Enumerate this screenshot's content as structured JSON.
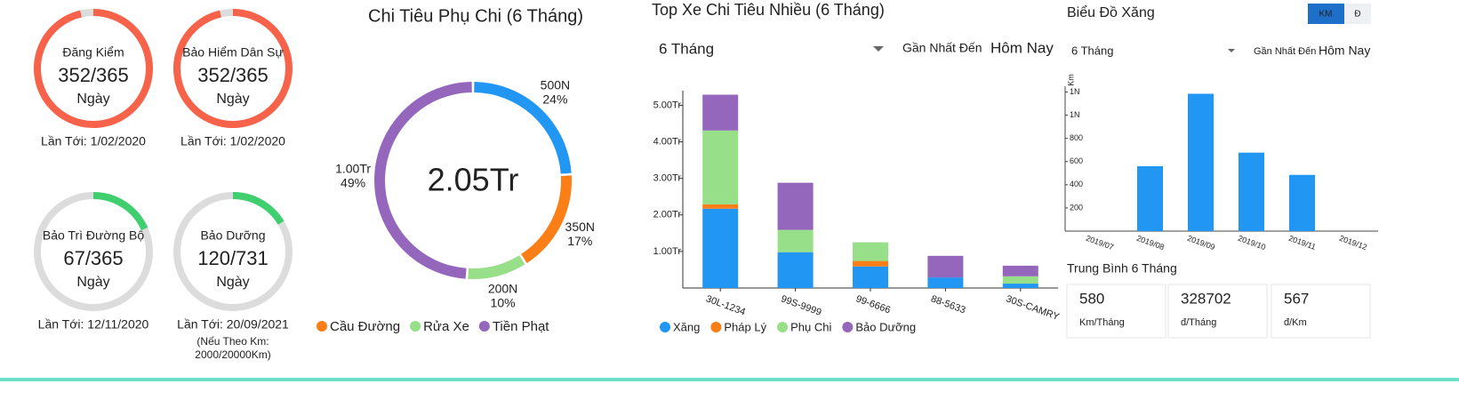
{
  "gauges": [
    {
      "title": "Đăng Kiểm",
      "value_label": "352/365",
      "value": 352,
      "max": 365,
      "unit": "Ngày",
      "next": "Lần Tới: 1/02/2020",
      "color": "#f7634a"
    },
    {
      "title": "Bảo Hiểm Dân Sự",
      "value_label": "352/365",
      "value": 352,
      "max": 365,
      "unit": "Ngày",
      "next": "Lần Tới: 1/02/2020",
      "color": "#f7634a"
    },
    {
      "title": "Bảo Trì Đường Bộ",
      "value_label": "67/365",
      "value": 67,
      "max": 365,
      "unit": "Ngày",
      "next": "Lần Tới: 12/11/2020",
      "color": "#3fcf6f"
    },
    {
      "title": "Bảo Dưỡng",
      "value_label": "120/731",
      "value": 120,
      "max": 731,
      "unit": "Ngày",
      "next": "Lần Tới: 20/09/2021",
      "color": "#3fcf6f",
      "note": [
        "(Nếu Theo Km:",
        "2000/20000Km)"
      ]
    }
  ],
  "chart_data": [
    {
      "type": "donut",
      "title": "Chi Tiêu Phụ Chi (6 Tháng)",
      "center_label": "2.05Tr",
      "categories": [
        null,
        "Cầu Đường",
        "Rửa Xe",
        "Tiền Phạt"
      ],
      "values": [
        24,
        17,
        10,
        49
      ],
      "value_labels": [
        "24%",
        "17%",
        "10%",
        "49%"
      ],
      "amount_labels": [
        "500N",
        "350N",
        "200N",
        "1.00Tr"
      ],
      "colors": [
        "#2196f3",
        "#fb7f16",
        "#98df8a",
        "#9467bd"
      ]
    },
    {
      "type": "stacked-bar",
      "title": "Top Xe Chi Tiêu Nhiều (6 Tháng)",
      "controls": {
        "period": "6 Tháng",
        "until": "Gần Nhất Đến",
        "today": "Hôm Nay"
      },
      "categories": [
        "30L-1234",
        "99S-9999",
        "99-6666",
        "88-5633",
        "30S-CAMRY"
      ],
      "series": [
        {
          "name": "Xăng",
          "color": "#2196f3",
          "values": [
            2.17,
            0.98,
            0.59,
            0.29,
            0.12
          ]
        },
        {
          "name": "Pháp Lý",
          "color": "#fb7f16",
          "values": [
            0.12,
            0,
            0.15,
            0,
            0
          ]
        },
        {
          "name": "Phụ Chi",
          "color": "#98df8a",
          "values": [
            2.02,
            0.61,
            0.51,
            0,
            0.2
          ]
        },
        {
          "name": "Bảo Dưỡng",
          "color": "#9467bd",
          "values": [
            0.98,
            1.29,
            0,
            0.59,
            0.29
          ]
        }
      ],
      "ylim": [
        0,
        5.4
      ],
      "yticks": [
        {
          "value": 1,
          "label": "1.00Tr"
        },
        {
          "value": 2,
          "label": "2.00Tr"
        },
        {
          "value": 3,
          "label": "3.00Tr"
        },
        {
          "value": 4,
          "label": "4.00Tr"
        },
        {
          "value": 5,
          "label": "5.00Tr"
        }
      ]
    },
    {
      "type": "bar",
      "title": "Biểu Đồ Xăng",
      "toggle": [
        "KM",
        "Đ"
      ],
      "controls": {
        "period": "6 Tháng",
        "until": "Gần Nhất Đến",
        "today": "Hôm Nay"
      },
      "y_label": "Km",
      "categories": [
        "2019/07",
        "2019/08",
        "2019/09",
        "2019/10",
        "2019/11",
        "2019/12"
      ],
      "values": [
        0,
        560,
        1185,
        677,
        485,
        0
      ],
      "color": "#2196f3",
      "ylim": [
        0,
        1250
      ],
      "yticks": [
        200,
        400,
        600,
        800,
        {
          "value": 1000,
          "label": "1N"
        },
        {
          "value": 1200,
          "label": "1N"
        }
      ],
      "summary": {
        "title": "Trung Bình 6 Tháng",
        "cards": [
          {
            "value": 580,
            "unit": "Km/Tháng"
          },
          {
            "value": 328702,
            "unit": "đ/Tháng"
          },
          {
            "value": 567,
            "unit": "đ/Km"
          }
        ]
      }
    }
  ]
}
